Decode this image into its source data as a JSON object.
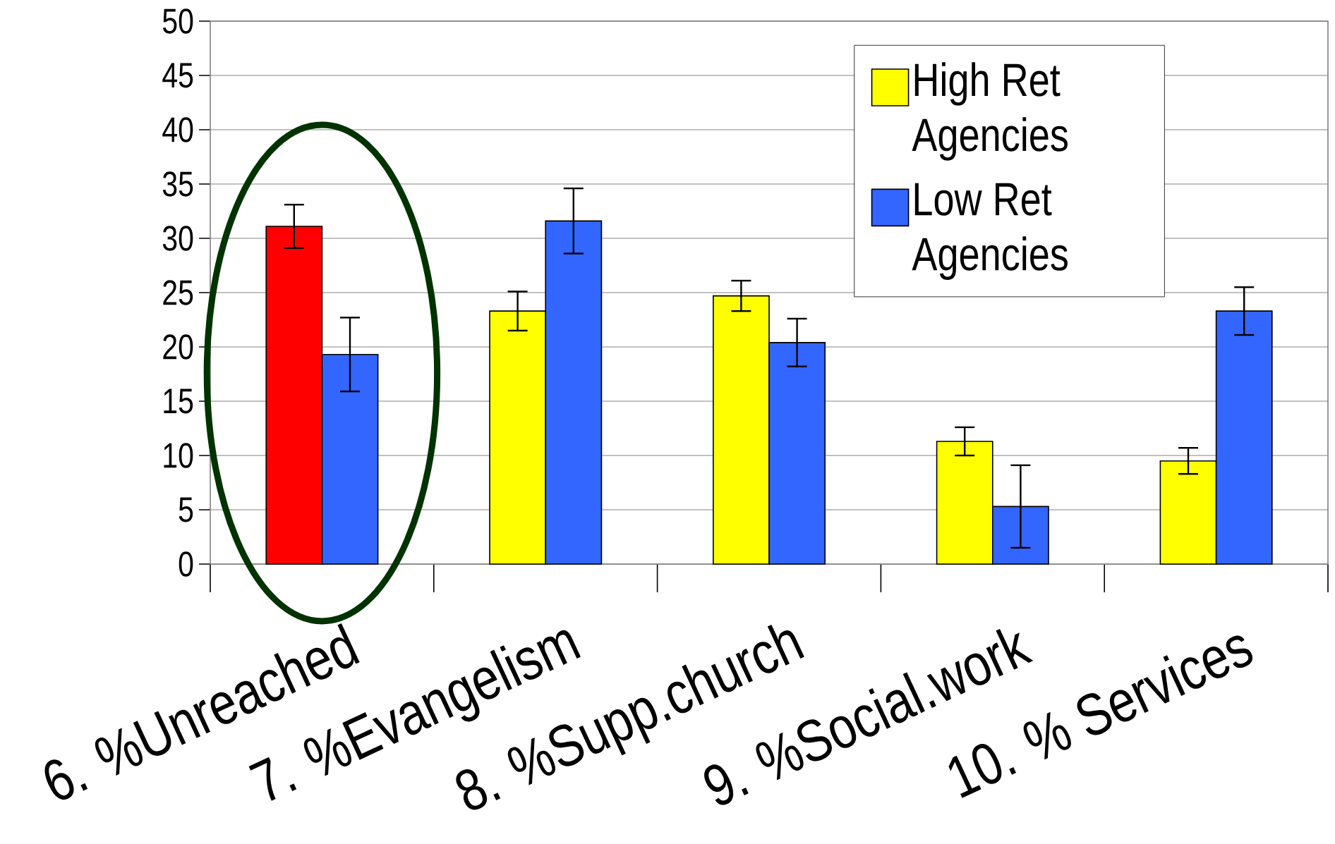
{
  "chart_data": {
    "type": "bar",
    "categories": [
      "6. %Unreached",
      "7. %Evangelism",
      "8. %Supp.church",
      "9. %Social.work",
      "10. % Services"
    ],
    "series": [
      {
        "name": "High Ret Agencies",
        "color": "#ffff00",
        "colors": [
          "#ff0000",
          "#ffff00",
          "#ffff00",
          "#ffff00",
          "#ffff00"
        ],
        "values": [
          31.1,
          23.3,
          24.7,
          11.3,
          9.5
        ],
        "errors": [
          2.0,
          1.8,
          1.4,
          1.3,
          1.2
        ]
      },
      {
        "name": "Low Ret Agencies",
        "color": "#3366ff",
        "values": [
          19.3,
          31.6,
          20.4,
          5.3,
          23.3
        ],
        "errors": [
          3.4,
          3.0,
          2.2,
          3.8,
          2.2
        ]
      }
    ],
    "ylim": [
      0,
      50
    ],
    "yticks": [
      0,
      5,
      10,
      15,
      20,
      25,
      30,
      35,
      40,
      45,
      50
    ],
    "grid": "y",
    "legend": "top right"
  }
}
